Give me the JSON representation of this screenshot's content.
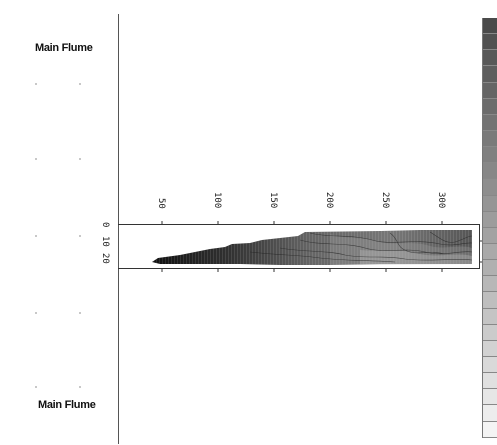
{
  "labels": {
    "top": "Main Flume",
    "bottom": "Main Flume"
  },
  "plot": {
    "x_ticks": [
      "50",
      "100",
      "150",
      "200",
      "250",
      "300"
    ],
    "depth_ticks": [
      "0",
      "10",
      "20"
    ]
  },
  "scale": {
    "segments": 26,
    "top_color": "#4a4a4a",
    "bottom_color": "#f4f4f4"
  }
}
